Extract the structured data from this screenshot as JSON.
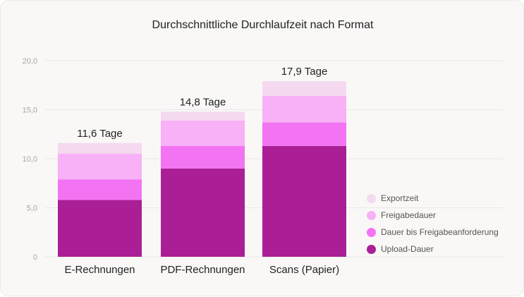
{
  "chart_data": {
    "type": "bar",
    "stacked": true,
    "title": "Durchschnittliche Durchlaufzeit nach Format",
    "categories": [
      "E-Rechnungen",
      "PDF-Rechnungen",
      "Scans (Papier)"
    ],
    "totals": [
      11.6,
      14.8,
      17.9
    ],
    "total_labels": [
      "11,6 Tage",
      "14,8 Tage",
      "17,9 Tage"
    ],
    "series": [
      {
        "name": "Upload-Dauer",
        "color": "#aa1f96",
        "values": [
          5.8,
          9.0,
          11.3
        ]
      },
      {
        "name": "Dauer bis Freigabeanforderung",
        "color": "#f374f2",
        "values": [
          2.1,
          2.3,
          2.4
        ]
      },
      {
        "name": "Freigabedauer",
        "color": "#f8b0f6",
        "values": [
          2.6,
          2.6,
          2.7
        ]
      },
      {
        "name": "Exportzeit",
        "color": "#f5d9ef",
        "values": [
          1.1,
          0.9,
          1.5
        ]
      }
    ],
    "ylim": [
      0,
      20
    ],
    "yticks": [
      0,
      5,
      10,
      15,
      20
    ],
    "ytick_labels": [
      "0",
      "5,0",
      "10,0",
      "15,0",
      "20,0"
    ],
    "grid": true,
    "legend_position": "bottom-right"
  },
  "legend_order": [
    3,
    2,
    1,
    0
  ]
}
